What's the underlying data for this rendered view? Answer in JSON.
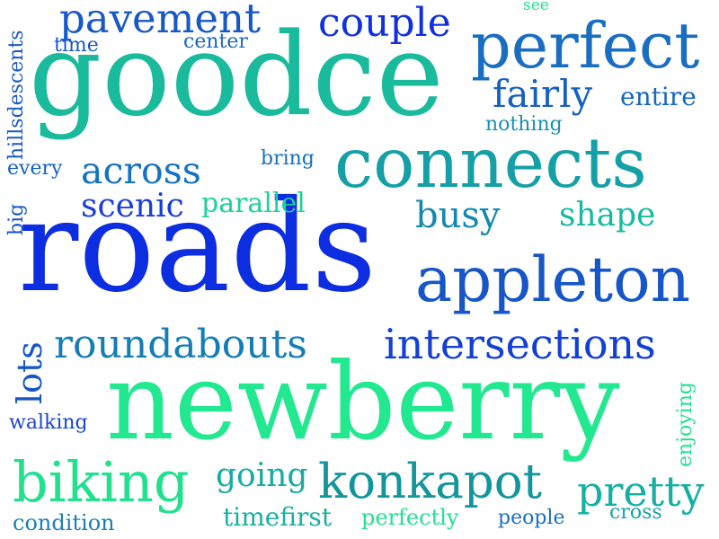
{
  "words": {
    "goodce": "goodce",
    "roads": "roads",
    "newberry": "newberry",
    "connects": "connects",
    "appleton": "appleton",
    "perfect": "perfect",
    "biking": "biking",
    "konkapot": "konkapot",
    "intersections": "intersections",
    "roundabouts": "roundabouts",
    "pavement": "pavement",
    "couple": "couple",
    "fairly": "fairly",
    "across": "across",
    "busy": "busy",
    "pretty": "pretty",
    "shape": "shape",
    "scenic": "scenic",
    "parallel": "parallel",
    "going": "going",
    "lots": "lots",
    "entire": "entire",
    "nothing": "nothing",
    "time": "time",
    "center": "center",
    "see": "see",
    "hillsdescents": "hillsdescents",
    "every": "every",
    "bring": "bring",
    "big": "big",
    "walking": "walking",
    "enjoying": "enjoying",
    "condition": "condition",
    "timefirst": "timefirst",
    "perfectly": "perfectly",
    "people": "people",
    "cross": "cross"
  },
  "colors": {
    "blue_deep": "#1030e0",
    "blue": "#1656c8",
    "blue_teal": "#127ab8",
    "teal": "#14a0a6",
    "teal_green": "#10c8a0",
    "green": "#22e890"
  }
}
